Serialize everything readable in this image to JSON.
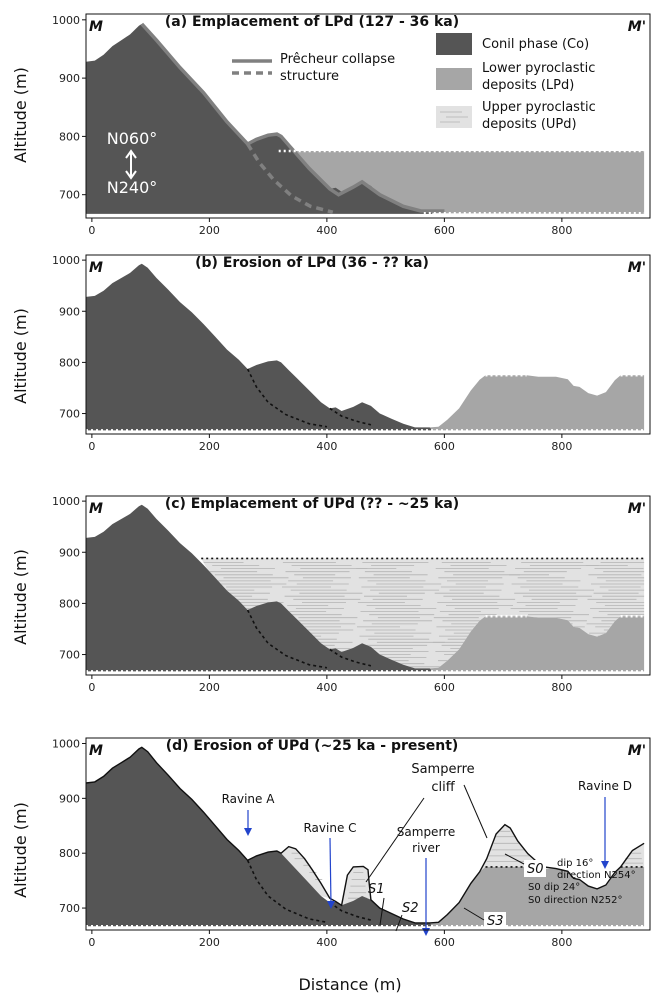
{
  "figure": {
    "x_axis_label": "Distance (m)",
    "y_axis_label": "Altitude (m)",
    "x_ticks": [
      "0",
      "200",
      "400",
      "600",
      "800"
    ],
    "y_ticks": [
      "1000",
      "900",
      "800",
      "700"
    ],
    "corner_left": "M",
    "corner_right": "M'",
    "colors": {
      "conil": "#555555",
      "lpd": "#a6a6a6",
      "upd": "#e2e2e2",
      "collapse": "#808080",
      "arrow": "#2244cc"
    }
  },
  "panels": [
    {
      "title": "(a) Emplacement of LPd (127 - 36 ka)"
    },
    {
      "title": "(b) Erosion of LPd (36 - ?? ka)"
    },
    {
      "title": "(c) Emplacement of UPd (?? - ~25 ka)"
    },
    {
      "title": "(d) Erosion of UPd (~25 ka - present)"
    }
  ],
  "legend": {
    "collapse_line1": "Prêcheur collapse",
    "collapse_line2": "structure",
    "conil": "Conil phase (Co)",
    "lpd_line1": "Lower pyroclastic",
    "lpd_line2": "deposits (LPd)",
    "upd_line1": "Upper pyroclastic",
    "upd_line2": "deposits (UPd)"
  },
  "orientation": {
    "top": "N060°",
    "bottom": "N240°"
  },
  "annotations_c": {
    "dip": "dip 16°",
    "direction": "direction N254°"
  },
  "annotations_d": {
    "ravine_a": "Ravine A",
    "ravine_c": "Ravine C",
    "ravine_d": "Ravine D",
    "samperre_cliff_1": "Samperre",
    "samperre_cliff_2": "cliff",
    "samperre_river_1": "Samperre",
    "samperre_river_2": "river",
    "s0": "S0",
    "s1": "S1",
    "s2": "S2",
    "s3": "S3",
    "s0_dip": "S0 dip 24°",
    "s0_direction": "S0 direction N252°"
  },
  "chart_data": [
    {
      "type": "area",
      "title": "(a) Emplacement of LPd (127 - 36 ka)",
      "xlabel": "",
      "ylabel": "Altitude (m)",
      "xlim": [
        -10,
        950
      ],
      "ylim": [
        660,
        1010
      ],
      "series": [
        {
          "name": "Conil phase (Co)"
        },
        {
          "name": "Lower pyroclastic deposits (LPd)"
        }
      ]
    },
    {
      "type": "area",
      "title": "(b) Erosion of LPd (36 - ?? ka)",
      "xlabel": "",
      "ylabel": "Altitude (m)",
      "xlim": [
        -10,
        950
      ],
      "ylim": [
        660,
        1010
      ]
    },
    {
      "type": "area",
      "title": "(c) Emplacement of UPd (?? - ~25 ka)",
      "xlabel": "",
      "ylabel": "Altitude (m)",
      "xlim": [
        -10,
        950
      ],
      "ylim": [
        660,
        1010
      ]
    },
    {
      "type": "area",
      "title": "(d) Erosion of UPd (~25 ka - present)",
      "xlabel": "Distance (m)",
      "ylabel": "Altitude (m)",
      "xlim": [
        -10,
        950
      ],
      "ylim": [
        660,
        1010
      ]
    }
  ]
}
